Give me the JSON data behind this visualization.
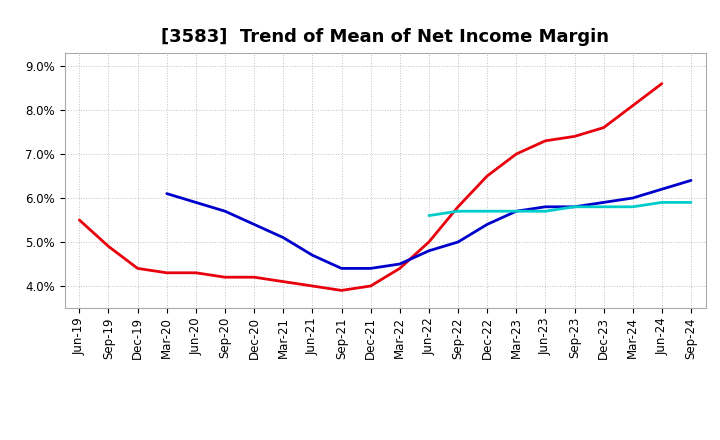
{
  "title": "[3583]  Trend of Mean of Net Income Margin",
  "ylim": [
    0.035,
    0.093
  ],
  "yticks": [
    0.04,
    0.05,
    0.06,
    0.07,
    0.08,
    0.09
  ],
  "x_labels": [
    "Jun-19",
    "Sep-19",
    "Dec-19",
    "Mar-20",
    "Jun-20",
    "Sep-20",
    "Dec-20",
    "Mar-21",
    "Jun-21",
    "Sep-21",
    "Dec-21",
    "Mar-22",
    "Jun-22",
    "Sep-22",
    "Dec-22",
    "Mar-23",
    "Jun-23",
    "Sep-23",
    "Dec-23",
    "Mar-24",
    "Jun-24",
    "Sep-24"
  ],
  "series_3y": [
    0.055,
    0.049,
    0.044,
    0.043,
    0.043,
    0.042,
    0.042,
    0.041,
    0.04,
    0.039,
    0.04,
    0.044,
    0.05,
    0.058,
    0.065,
    0.07,
    0.073,
    0.074,
    0.076,
    0.081,
    0.086,
    null
  ],
  "series_5y": [
    null,
    null,
    null,
    0.061,
    0.059,
    0.057,
    0.054,
    0.051,
    0.047,
    0.044,
    0.044,
    0.045,
    0.048,
    0.05,
    0.054,
    0.057,
    0.058,
    0.058,
    0.059,
    0.06,
    0.062,
    0.064
  ],
  "series_7y": [
    null,
    null,
    null,
    null,
    null,
    null,
    null,
    null,
    null,
    null,
    null,
    null,
    0.056,
    0.057,
    0.057,
    0.057,
    0.057,
    0.058,
    0.058,
    0.058,
    0.059,
    0.059
  ],
  "series_10y": [
    null,
    null,
    null,
    null,
    null,
    null,
    null,
    null,
    null,
    null,
    null,
    null,
    null,
    null,
    null,
    null,
    null,
    null,
    null,
    null,
    null,
    null
  ],
  "color_3y": "#e8000d",
  "color_5y": "#0000cc",
  "color_7y": "#00cccc",
  "color_10y": "#008000",
  "background_color": "#ffffff",
  "grid_color": "#c0c0c0",
  "title_fontsize": 13,
  "tick_fontsize": 8.5,
  "legend_fontsize": 9,
  "linewidth": 2.0
}
